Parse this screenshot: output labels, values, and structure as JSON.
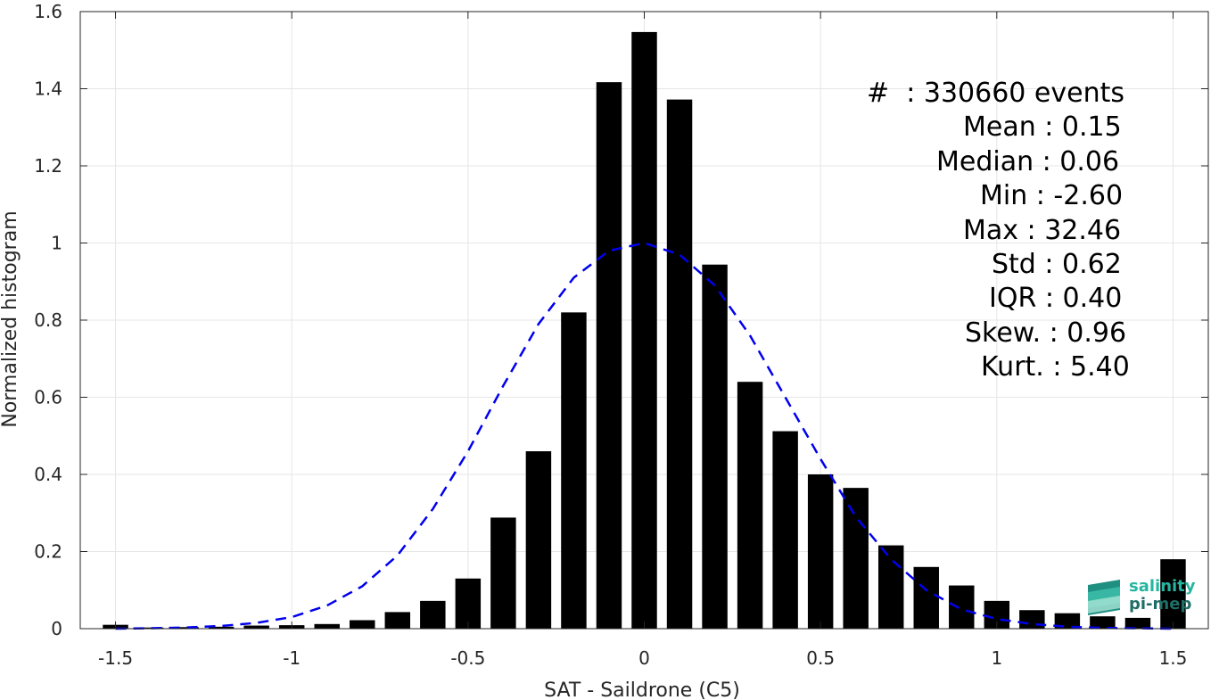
{
  "chart_data": {
    "type": "bar",
    "xlabel": "SAT - Saildrone (C5)",
    "ylabel": "Normalized histogram",
    "xlim": [
      -1.6,
      1.6
    ],
    "ylim": [
      0,
      1.6
    ],
    "x_ticks": [
      -1.5,
      -1,
      -0.5,
      0,
      0.5,
      1,
      1.5
    ],
    "x_tick_labels": [
      "-1.5",
      "-1",
      "-0.5",
      "0",
      "0.5",
      "1",
      "1.5"
    ],
    "y_ticks": [
      0,
      0.2,
      0.4,
      0.6,
      0.8,
      1,
      1.2,
      1.4,
      1.6
    ],
    "y_tick_labels": [
      "0",
      "0.2",
      "0.4",
      "0.6",
      "0.8",
      "1",
      "1.2",
      "1.4",
      "1.6"
    ],
    "grid": true,
    "bar_color": "#000000",
    "series": [
      {
        "type": "bar",
        "x": [
          -1.5,
          -1.4,
          -1.3,
          -1.2,
          -1.1,
          -1.0,
          -0.9,
          -0.8,
          -0.7,
          -0.6,
          -0.5,
          -0.4,
          -0.3,
          -0.2,
          -0.1,
          0.0,
          0.1,
          0.2,
          0.3,
          0.4,
          0.5,
          0.6,
          0.7,
          0.8,
          0.9,
          1.0,
          1.1,
          1.2,
          1.3,
          1.4,
          1.5
        ],
        "values": [
          0.01,
          0.003,
          0.004,
          0.005,
          0.008,
          0.009,
          0.012,
          0.022,
          0.043,
          0.072,
          0.13,
          0.288,
          0.46,
          0.82,
          1.417,
          1.547,
          1.372,
          0.944,
          0.64,
          0.512,
          0.4,
          0.365,
          0.216,
          0.16,
          0.112,
          0.072,
          0.048,
          0.04,
          0.032,
          0.028,
          0.18
        ]
      },
      {
        "type": "line",
        "style": "dashed",
        "color": "#0000ee",
        "x": [
          -1.5,
          -1.4,
          -1.3,
          -1.2,
          -1.1,
          -1.0,
          -0.9,
          -0.8,
          -0.7,
          -0.6,
          -0.5,
          -0.4,
          -0.3,
          -0.2,
          -0.1,
          0.0,
          0.1,
          0.2,
          0.3,
          0.4,
          0.5,
          0.6,
          0.7,
          0.8,
          0.9,
          1.0,
          1.1,
          1.2,
          1.3,
          1.4,
          1.5
        ],
        "values": [
          0.0,
          0.001,
          0.003,
          0.007,
          0.015,
          0.03,
          0.06,
          0.11,
          0.19,
          0.31,
          0.46,
          0.63,
          0.79,
          0.91,
          0.98,
          1.0,
          0.97,
          0.89,
          0.76,
          0.6,
          0.44,
          0.29,
          0.18,
          0.1,
          0.05,
          0.025,
          0.012,
          0.005,
          0.002,
          0.001,
          0.0
        ]
      }
    ],
    "annotations": [
      "#  : 330660 events",
      "Mean : 0.15",
      "Median : 0.06",
      "Min : -2.60",
      "Max : 32.46",
      "Std : 0.62",
      "IQR : 0.40",
      "Skew. : 0.96",
      "Kurt. : 5.40"
    ]
  },
  "logo": {
    "line1": "salinity",
    "line2": "pi-mep"
  }
}
